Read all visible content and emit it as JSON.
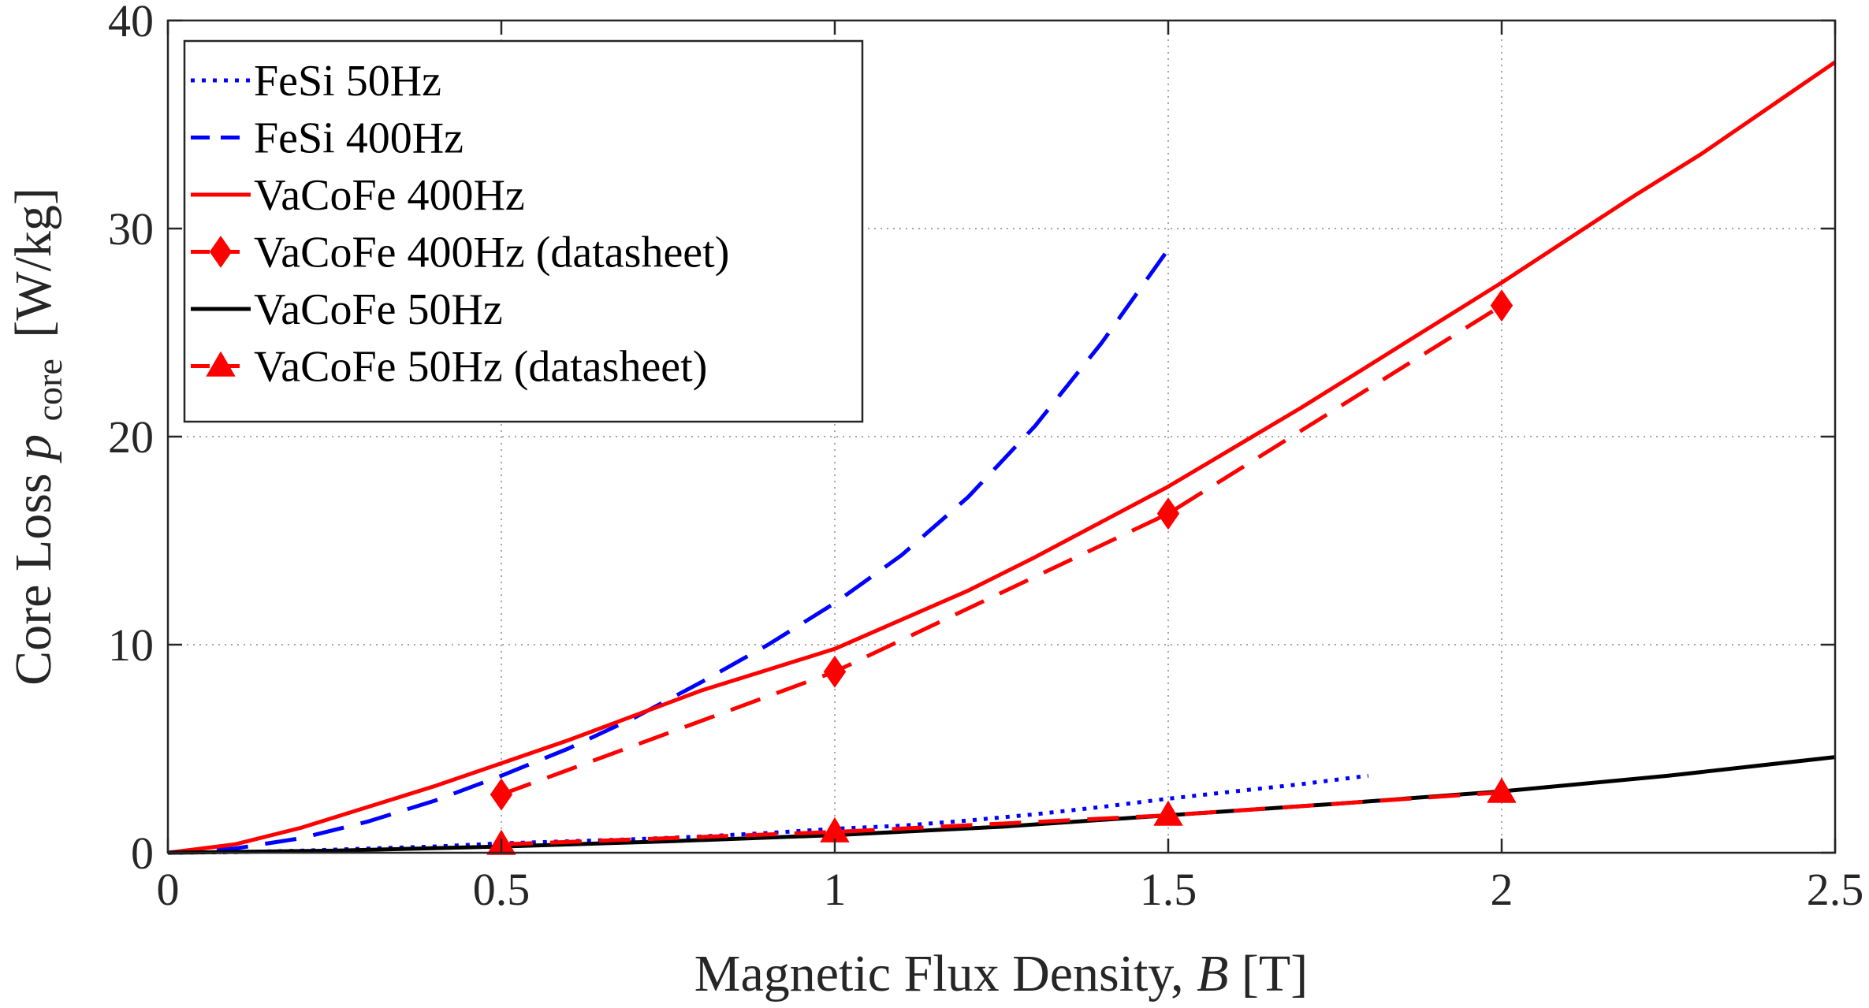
{
  "chart_data": {
    "type": "line",
    "title": "",
    "xlabel": "Magnetic Flux Density,",
    "xlabel_symbol": "B",
    "xlabel_unit": "[T]",
    "ylabel": "Core Loss",
    "ylabel_symbol": "p",
    "ylabel_subscript": "core",
    "ylabel_unit": "[W/kg]",
    "xlim": [
      0,
      2.5
    ],
    "ylim": [
      0,
      40
    ],
    "xticks": [
      0,
      0.5,
      1,
      1.5,
      2,
      2.5
    ],
    "xtick_labels": [
      "0",
      "0.5",
      "1",
      "1.5",
      "2",
      "2.5"
    ],
    "yticks": [
      0,
      10,
      20,
      30,
      40
    ],
    "ytick_labels": [
      "0",
      "10",
      "20",
      "30",
      "40"
    ],
    "grid": true,
    "legend_position": "top-left",
    "series": [
      {
        "name": "FeSi 50Hz",
        "color": "#0000ff",
        "style": "dotted",
        "marker": "none",
        "x": [
          0,
          0.1,
          0.2,
          0.3,
          0.4,
          0.5,
          0.6,
          0.7,
          0.8,
          0.9,
          1.0,
          1.1,
          1.2,
          1.3,
          1.4,
          1.5,
          1.6,
          1.7,
          1.8
        ],
        "y": [
          0,
          0.03,
          0.1,
          0.2,
          0.3,
          0.45,
          0.55,
          0.65,
          0.78,
          0.95,
          1.15,
          1.3,
          1.55,
          1.85,
          2.2,
          2.6,
          2.95,
          3.3,
          3.7
        ]
      },
      {
        "name": "FeSi 400Hz",
        "color": "#0000ff",
        "style": "dashed",
        "marker": "none",
        "x": [
          0,
          0.1,
          0.2,
          0.3,
          0.4,
          0.5,
          0.6,
          0.7,
          0.8,
          0.9,
          1.0,
          1.1,
          1.2,
          1.3,
          1.4,
          1.5
        ],
        "y": [
          0,
          0.2,
          0.7,
          1.5,
          2.5,
          3.7,
          5.0,
          6.5,
          8.2,
          10.0,
          12.0,
          14.3,
          17.1,
          20.5,
          24.5,
          29.0
        ]
      },
      {
        "name": "VaCoFe 400Hz",
        "color": "#ff0000",
        "style": "solid",
        "marker": "none",
        "x": [
          0,
          0.1,
          0.2,
          0.3,
          0.4,
          0.5,
          0.6,
          0.7,
          0.8,
          0.9,
          1.0,
          1.1,
          1.2,
          1.3,
          1.4,
          1.5,
          1.6,
          1.7,
          1.8,
          1.9,
          2.0,
          2.1,
          2.2,
          2.3,
          2.4,
          2.5
        ],
        "y": [
          0,
          0.4,
          1.2,
          2.2,
          3.2,
          4.3,
          5.4,
          6.6,
          7.8,
          8.8,
          9.8,
          11.2,
          12.6,
          14.2,
          15.9,
          17.6,
          19.5,
          21.4,
          23.4,
          25.4,
          27.4,
          29.5,
          31.6,
          33.6,
          35.8,
          38.0
        ]
      },
      {
        "name": "VaCoFe 400Hz (datasheet)",
        "color": "#ff0000",
        "style": "dashed",
        "marker": "diamond",
        "x": [
          0.5,
          1.0,
          1.5,
          2.0
        ],
        "y": [
          2.8,
          8.7,
          16.3,
          26.3
        ]
      },
      {
        "name": "VaCoFe 50Hz",
        "color": "#000000",
        "style": "solid",
        "marker": "none",
        "x": [
          0,
          0.25,
          0.5,
          0.75,
          1.0,
          1.25,
          1.5,
          1.75,
          2.0,
          2.25,
          2.5
        ],
        "y": [
          0,
          0.1,
          0.3,
          0.55,
          0.85,
          1.25,
          1.8,
          2.35,
          2.95,
          3.7,
          4.6
        ]
      },
      {
        "name": "VaCoFe 50Hz (datasheet)",
        "color": "#ff0000",
        "style": "dashed",
        "marker": "triangle",
        "x": [
          0.5,
          1.0,
          1.5,
          2.0
        ],
        "y": [
          0.4,
          1.0,
          1.8,
          2.9
        ]
      }
    ]
  }
}
